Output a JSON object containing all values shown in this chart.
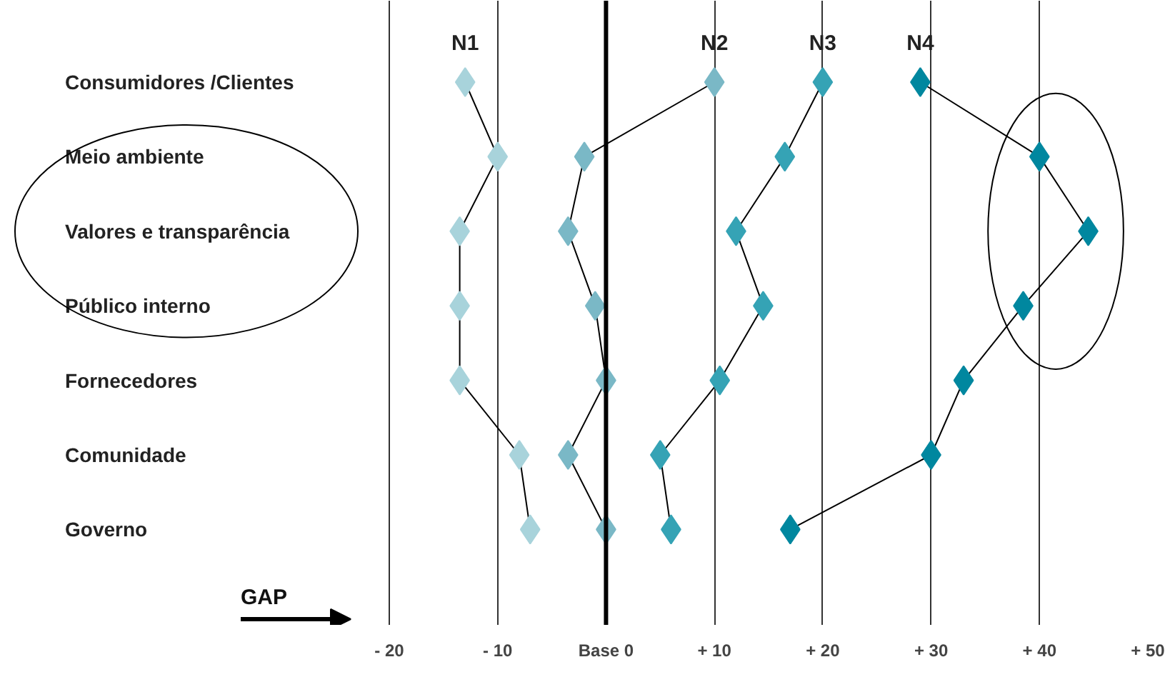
{
  "chart_data": {
    "type": "line",
    "orientation": "horizontal",
    "marker": "diamond",
    "grid": "x",
    "categories": [
      "Consumidores /Clientes",
      "Meio ambiente",
      "Valores e transparência",
      "Público interno",
      "Fornecedores",
      "Comunidade",
      "Governo"
    ],
    "series": [
      {
        "name": "N1",
        "color": "#a8d3db",
        "values": [
          -13,
          -10,
          -13.5,
          -13.5,
          -13.5,
          -8,
          -7
        ]
      },
      {
        "name": "N2",
        "color": "#7ab8c6",
        "values": [
          10,
          -2,
          -3.5,
          -1,
          0,
          -3.5,
          0
        ]
      },
      {
        "name": "N3",
        "color": "#35a3b5",
        "values": [
          20,
          16.5,
          12,
          14.5,
          10.5,
          5,
          6
        ]
      },
      {
        "name": "N4",
        "color": "#00879f",
        "values": [
          29,
          40,
          44.5,
          38.5,
          33,
          30,
          17
        ]
      }
    ],
    "xlim": [
      -20,
      50
    ],
    "xticks": [
      {
        "value": -20,
        "label": "- 20"
      },
      {
        "value": -10,
        "label": "- 10"
      },
      {
        "value": 0,
        "label": "Base 0"
      },
      {
        "value": 10,
        "label": "+ 10"
      },
      {
        "value": 20,
        "label": "+ 20"
      },
      {
        "value": 30,
        "label": "+ 30"
      },
      {
        "value": 40,
        "label": "+ 40"
      },
      {
        "value": 50,
        "label": "+ 50"
      }
    ],
    "ref_lines": [
      {
        "axis": "x",
        "value": 0
      }
    ],
    "annotations": [
      "GAP"
    ]
  }
}
